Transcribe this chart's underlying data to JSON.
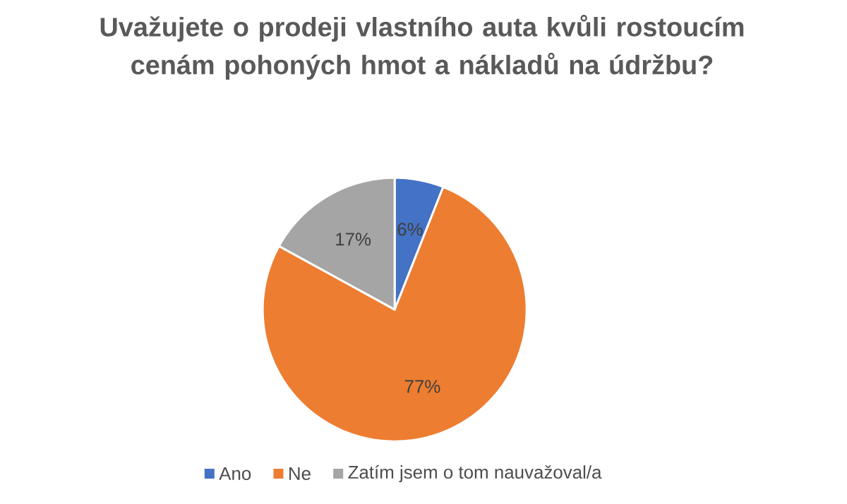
{
  "chart_data": {
    "type": "pie",
    "title": "Uvažujete o prodeji vlastního auta kvůli rostoucím cenám pohoných hmot a nákladů na údržbu?",
    "categories": [
      "Ano",
      "Ne",
      "Zatím jsem o tom nauvažoval/a"
    ],
    "values": [
      6,
      77,
      17
    ],
    "colors": [
      "#4472c4",
      "#ed7d31",
      "#a5a5a5"
    ],
    "value_labels": [
      "6%",
      "77%",
      "17%"
    ],
    "legend": "bottom"
  }
}
